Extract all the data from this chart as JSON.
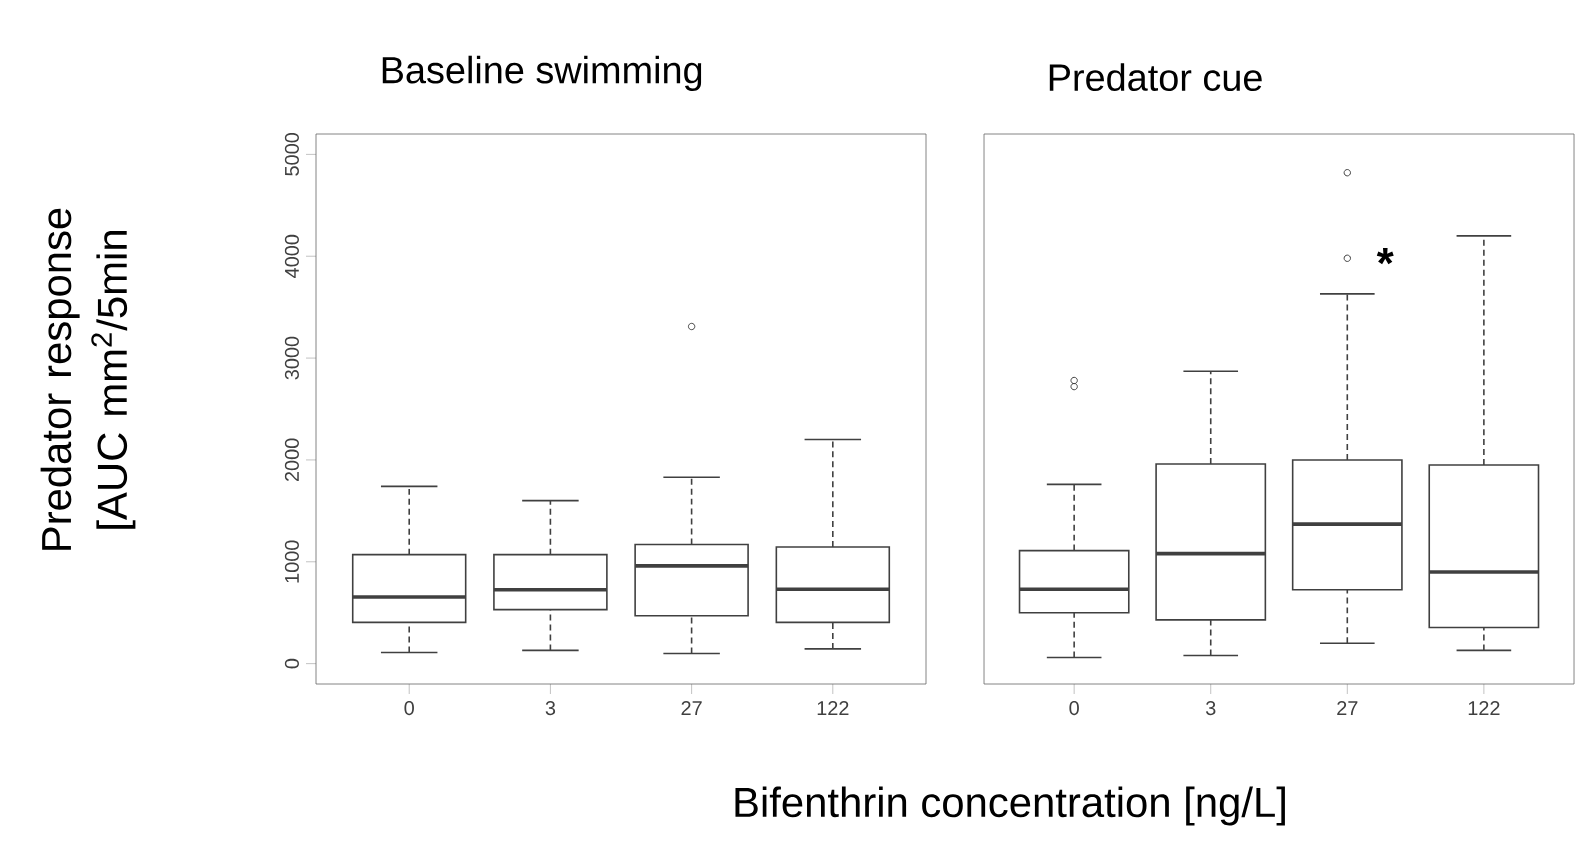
{
  "chart_data": [
    {
      "type": "box",
      "title": "Baseline swimming",
      "ylabel": "Predator response [AUC mm$^{2}$/5min",
      "xlabel": "Bifenthrin concentration [ng/L]",
      "color": "#404040",
      "categories": [
        "0",
        "3",
        "27",
        "122"
      ],
      "boxes": [
        {
          "low": 110,
          "q1": 405,
          "median": 655,
          "q3": 1070,
          "high": 1740
        },
        {
          "low": 130,
          "q1": 530,
          "median": 725,
          "q3": 1070,
          "high": 1600
        },
        {
          "low": 100,
          "q1": 470,
          "median": 960,
          "q3": 1170,
          "high": 1830,
          "outliers": [
            3310
          ]
        },
        {
          "low": 145,
          "q1": 405,
          "median": 730,
          "q3": 1145,
          "high": 2200
        }
      ],
      "ylim": [
        -200,
        5200
      ],
      "yticks": [
        0,
        1000,
        2000,
        3000,
        4000,
        5000
      ]
    },
    {
      "type": "box",
      "title": "Predator cue",
      "color": "#404040",
      "categories": [
        "0",
        "3",
        "27",
        "122"
      ],
      "boxes": [
        {
          "low": 60,
          "q1": 500,
          "median": 730,
          "q3": 1110,
          "high": 1760,
          "outliers": [
            2780,
            2720
          ]
        },
        {
          "low": 80,
          "q1": 430,
          "median": 1080,
          "q3": 1960,
          "high": 2870
        },
        {
          "low": 200,
          "q1": 725,
          "median": 1370,
          "q3": 2000,
          "high": 3630,
          "outliers": [
            4820,
            3980
          ]
        },
        {
          "low": 130,
          "q1": 355,
          "median": 900,
          "q3": 1950,
          "high": 4200
        }
      ],
      "annotations": [
        "*"
      ],
      "ylim": [
        -200,
        5200
      ],
      "yticks": [
        0,
        1000,
        2000,
        3000,
        4000,
        5000
      ],
      "tick_labels": "x"
    }
  ]
}
